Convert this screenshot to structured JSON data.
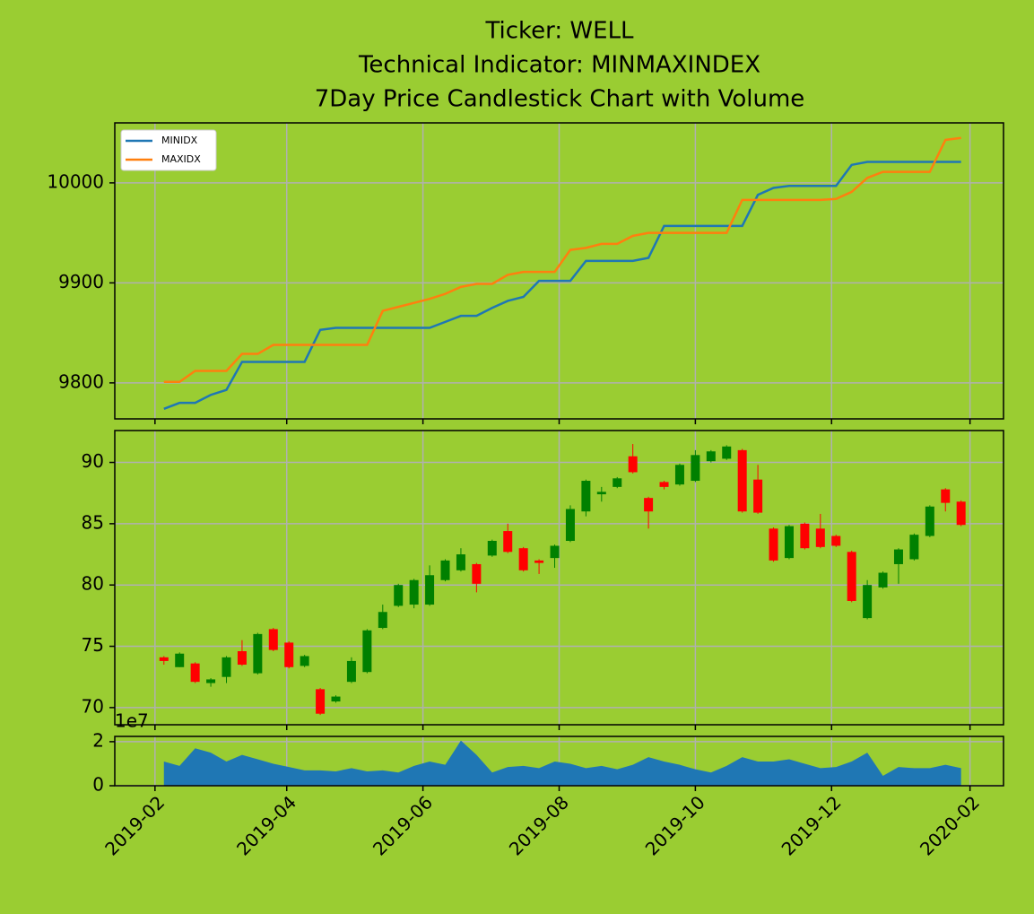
{
  "chart_data": [
    {
      "type": "line",
      "title": [
        "Ticker: WELL",
        "Technical Indicator: MINMAXINDEX",
        "7Day Price Candlestick Chart with Volume"
      ],
      "x": [
        "2019-02-05",
        "2019-02-12",
        "2019-02-19",
        "2019-02-26",
        "2019-03-05",
        "2019-03-12",
        "2019-03-19",
        "2019-03-26",
        "2019-04-02",
        "2019-04-09",
        "2019-04-16",
        "2019-04-23",
        "2019-04-30",
        "2019-05-07",
        "2019-05-14",
        "2019-05-21",
        "2019-05-28",
        "2019-06-04",
        "2019-06-11",
        "2019-06-18",
        "2019-06-25",
        "2019-07-02",
        "2019-07-09",
        "2019-07-16",
        "2019-07-23",
        "2019-07-30",
        "2019-08-06",
        "2019-08-13",
        "2019-08-20",
        "2019-08-27",
        "2019-09-03",
        "2019-09-10",
        "2019-09-17",
        "2019-09-24",
        "2019-10-01",
        "2019-10-08",
        "2019-10-15",
        "2019-10-22",
        "2019-10-29",
        "2019-11-05",
        "2019-11-12",
        "2019-11-19",
        "2019-11-26",
        "2019-12-03",
        "2019-12-10",
        "2019-12-17",
        "2019-12-24",
        "2019-12-31",
        "2020-01-07",
        "2020-01-14",
        "2020-01-21",
        "2020-01-28"
      ],
      "series": [
        {
          "name": "MINIDX",
          "color": "#1f77b4",
          "values": [
            9774,
            9780,
            9780,
            9788,
            9793,
            9821,
            9821,
            9821,
            9821,
            9821,
            9853,
            9855,
            9855,
            9855,
            9855,
            9855,
            9855,
            9855,
            9861,
            9867,
            9867,
            9875,
            9882,
            9886,
            9902,
            9902,
            9902,
            9922,
            9922,
            9922,
            9922,
            9925,
            9957,
            9957,
            9957,
            9957,
            9957,
            9957,
            9988,
            9995,
            9997,
            9997,
            9997,
            9997,
            10018,
            10021,
            10021,
            10021,
            10021,
            10021,
            10021,
            10021
          ]
        },
        {
          "name": "MAXIDX",
          "color": "#ff7f0e",
          "values": [
            9801,
            9801,
            9812,
            9812,
            9812,
            9829,
            9829,
            9838,
            9838,
            9838,
            9838,
            9838,
            9838,
            9838,
            9872,
            9876,
            9880,
            9884,
            9889,
            9896,
            9899,
            9899,
            9908,
            9911,
            9911,
            9911,
            9933,
            9935,
            9939,
            9939,
            9947,
            9950,
            9950,
            9950,
            9950,
            9950,
            9950,
            9983,
            9983,
            9983,
            9983,
            9983,
            9983,
            9984,
            9991,
            10005,
            10011,
            10011,
            10011,
            10011,
            10043,
            10045
          ]
        }
      ],
      "ylim": [
        9764,
        10060
      ],
      "yticks": [
        9800,
        9900,
        10000
      ],
      "grid": true,
      "legend": "upper left"
    },
    {
      "type": "candlestick",
      "x": [
        "2019-02-05",
        "2019-02-12",
        "2019-02-19",
        "2019-02-26",
        "2019-03-05",
        "2019-03-12",
        "2019-03-19",
        "2019-03-26",
        "2019-04-02",
        "2019-04-09",
        "2019-04-16",
        "2019-04-23",
        "2019-04-30",
        "2019-05-07",
        "2019-05-14",
        "2019-05-21",
        "2019-05-28",
        "2019-06-04",
        "2019-06-11",
        "2019-06-18",
        "2019-06-25",
        "2019-07-02",
        "2019-07-09",
        "2019-07-16",
        "2019-07-23",
        "2019-07-30",
        "2019-08-06",
        "2019-08-13",
        "2019-08-20",
        "2019-08-27",
        "2019-09-03",
        "2019-09-10",
        "2019-09-17",
        "2019-09-24",
        "2019-10-01",
        "2019-10-08",
        "2019-10-15",
        "2019-10-22",
        "2019-10-29",
        "2019-11-05",
        "2019-11-12",
        "2019-11-19",
        "2019-11-26",
        "2019-12-03",
        "2019-12-10",
        "2019-12-17",
        "2019-12-24",
        "2019-12-31",
        "2020-01-07",
        "2020-01-14",
        "2020-01-21",
        "2020-01-28"
      ],
      "open": [
        74.1,
        73.3,
        73.6,
        72.0,
        72.5,
        74.6,
        72.8,
        76.4,
        75.3,
        73.4,
        71.5,
        70.5,
        72.1,
        72.9,
        76.5,
        78.3,
        78.4,
        78.4,
        80.4,
        81.2,
        81.7,
        82.4,
        84.4,
        83.0,
        82.0,
        82.2,
        83.6,
        86.0,
        87.4,
        88.0,
        90.5,
        87.1,
        88.4,
        88.2,
        88.5,
        90.1,
        90.3,
        91.0,
        88.6,
        84.6,
        82.2,
        85.0,
        84.6,
        84.0,
        82.7,
        77.3,
        79.8,
        81.7,
        82.1,
        84.0,
        87.8,
        86.8
      ],
      "high": [
        74.2,
        74.5,
        73.7,
        72.4,
        74.2,
        75.5,
        76.1,
        76.5,
        75.4,
        74.3,
        71.6,
        71.0,
        74.1,
        76.4,
        78.4,
        80.1,
        80.5,
        81.6,
        82.1,
        83.0,
        81.8,
        83.7,
        85.0,
        83.1,
        82.1,
        83.3,
        86.5,
        88.6,
        88.0,
        88.8,
        91.5,
        87.2,
        88.5,
        89.9,
        91.0,
        91.0,
        91.4,
        91.1,
        89.8,
        84.7,
        84.9,
        85.1,
        85.8,
        84.1,
        82.8,
        80.4,
        81.1,
        83.0,
        84.2,
        86.5,
        87.9,
        86.9
      ],
      "low": [
        73.5,
        73.3,
        72.0,
        71.7,
        72.0,
        73.4,
        72.7,
        74.6,
        73.2,
        73.3,
        69.4,
        70.4,
        72.0,
        72.8,
        76.4,
        78.2,
        78.1,
        78.3,
        80.3,
        81.1,
        79.4,
        82.3,
        82.6,
        81.1,
        80.9,
        81.4,
        83.5,
        85.6,
        86.8,
        87.9,
        89.1,
        84.6,
        87.8,
        88.1,
        88.4,
        90.0,
        90.2,
        85.9,
        85.8,
        81.9,
        82.1,
        82.9,
        83.0,
        83.1,
        78.6,
        77.2,
        79.7,
        80.1,
        82.0,
        83.9,
        86.0,
        84.8
      ],
      "close": [
        73.8,
        74.4,
        72.1,
        72.3,
        74.1,
        73.5,
        76.0,
        74.7,
        73.3,
        74.2,
        69.5,
        70.9,
        73.8,
        76.3,
        77.8,
        80.0,
        80.4,
        80.8,
        82.0,
        82.5,
        80.1,
        83.6,
        82.7,
        81.2,
        81.8,
        83.2,
        86.2,
        88.5,
        87.6,
        88.7,
        89.2,
        86.0,
        88.0,
        89.8,
        90.6,
        90.9,
        91.3,
        86.0,
        85.9,
        82.0,
        84.8,
        83.0,
        83.1,
        83.2,
        78.7,
        80.0,
        81.0,
        82.9,
        84.1,
        86.4,
        86.7,
        84.9
      ],
      "up_color": "green",
      "down_color": "red",
      "ylim": [
        68.6,
        92.6
      ],
      "yticks": [
        70,
        75,
        80,
        85,
        90
      ],
      "grid": true
    },
    {
      "type": "area",
      "x": [
        "2019-02-05",
        "2019-02-12",
        "2019-02-19",
        "2019-02-26",
        "2019-03-05",
        "2019-03-12",
        "2019-03-19",
        "2019-03-26",
        "2019-04-02",
        "2019-04-09",
        "2019-04-16",
        "2019-04-23",
        "2019-04-30",
        "2019-05-07",
        "2019-05-14",
        "2019-05-21",
        "2019-05-28",
        "2019-06-04",
        "2019-06-11",
        "2019-06-18",
        "2019-06-25",
        "2019-07-02",
        "2019-07-09",
        "2019-07-16",
        "2019-07-23",
        "2019-07-30",
        "2019-08-06",
        "2019-08-13",
        "2019-08-20",
        "2019-08-27",
        "2019-09-03",
        "2019-09-10",
        "2019-09-17",
        "2019-09-24",
        "2019-10-01",
        "2019-10-08",
        "2019-10-15",
        "2019-10-22",
        "2019-10-29",
        "2019-11-05",
        "2019-11-12",
        "2019-11-19",
        "2019-11-26",
        "2019-12-03",
        "2019-12-10",
        "2019-12-17",
        "2019-12-24",
        "2019-12-31",
        "2020-01-07",
        "2020-01-14",
        "2020-01-21",
        "2020-01-28"
      ],
      "values": [
        1.1,
        0.9,
        1.7,
        1.5,
        1.1,
        1.4,
        1.2,
        1.0,
        0.85,
        0.7,
        0.7,
        0.65,
        0.8,
        0.65,
        0.7,
        0.6,
        0.9,
        1.1,
        0.95,
        2.05,
        1.4,
        0.6,
        0.85,
        0.9,
        0.8,
        1.1,
        1.0,
        0.8,
        0.9,
        0.75,
        0.95,
        1.3,
        1.1,
        0.95,
        0.75,
        0.6,
        0.9,
        1.3,
        1.1,
        1.1,
        1.2,
        1.0,
        0.8,
        0.85,
        1.1,
        1.5,
        0.45,
        0.85,
        0.8,
        0.8,
        0.95,
        0.8
      ],
      "color": "#1f77b4",
      "offset_label": "1e7",
      "ylim": [
        0,
        2.24
      ],
      "yticks": [
        0,
        2
      ],
      "grid": true,
      "xlim": [
        "2019-01-14",
        "2020-02-16"
      ],
      "xticks": [
        {
          "value": "2019-02-01",
          "label": "2019-02"
        },
        {
          "value": "2019-04-01",
          "label": "2019-04"
        },
        {
          "value": "2019-06-01",
          "label": "2019-06"
        },
        {
          "value": "2019-08-01",
          "label": "2019-08"
        },
        {
          "value": "2019-10-01",
          "label": "2019-10"
        },
        {
          "value": "2019-12-01",
          "label": "2019-12"
        },
        {
          "value": "2020-02-01",
          "label": "2020-02"
        }
      ]
    }
  ]
}
